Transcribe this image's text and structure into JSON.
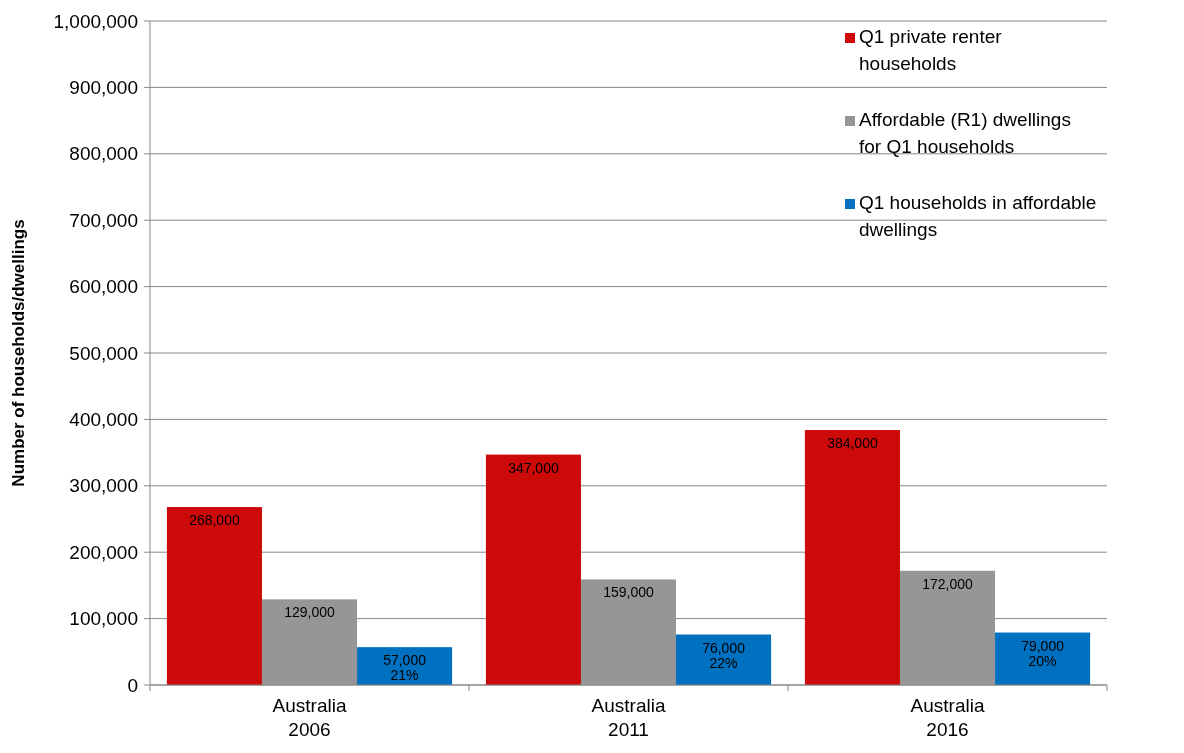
{
  "chart_data": {
    "type": "bar",
    "ylabel": "Number of households/dwellings",
    "categories": [
      "Australia\n2006",
      "Australia\n2011",
      "Australia\n2016"
    ],
    "series": [
      {
        "name": "Q1 private renter households",
        "color": "#cc0a0a",
        "values": [
          268000,
          347000,
          384000
        ],
        "value_labels": [
          "268,000",
          "347,000",
          "384,000"
        ]
      },
      {
        "name": "Affordable (R1) dwellings for Q1 households",
        "color": "#969696",
        "values": [
          129000,
          159000,
          172000
        ],
        "value_labels": [
          "129,000",
          "159,000",
          "172,000"
        ]
      },
      {
        "name": "Q1 households in affordable dwellings",
        "color": "#0070c0",
        "values": [
          57000,
          76000,
          79000
        ],
        "value_labels": [
          "57,000\n21%",
          "76,000\n22%",
          "79,000\n20%"
        ]
      }
    ],
    "ylim": [
      0,
      1000000
    ],
    "yticks": [
      0,
      {
        "value": 100000,
        "label": "100,000"
      },
      {
        "value": 200000,
        "label": "200,000"
      },
      {
        "value": 300000,
        "label": "300,000"
      },
      {
        "value": 400000,
        "label": "400,000"
      },
      {
        "value": 500000,
        "label": "500,000"
      },
      {
        "value": 600000,
        "label": "600,000"
      },
      {
        "value": 700000,
        "label": "700,000"
      },
      {
        "value": 800000,
        "label": "800,000"
      },
      {
        "value": 900000,
        "label": "900,000"
      },
      {
        "value": 1000000,
        "label": "1,000,000"
      }
    ],
    "grid": "y",
    "legend": "top right"
  }
}
